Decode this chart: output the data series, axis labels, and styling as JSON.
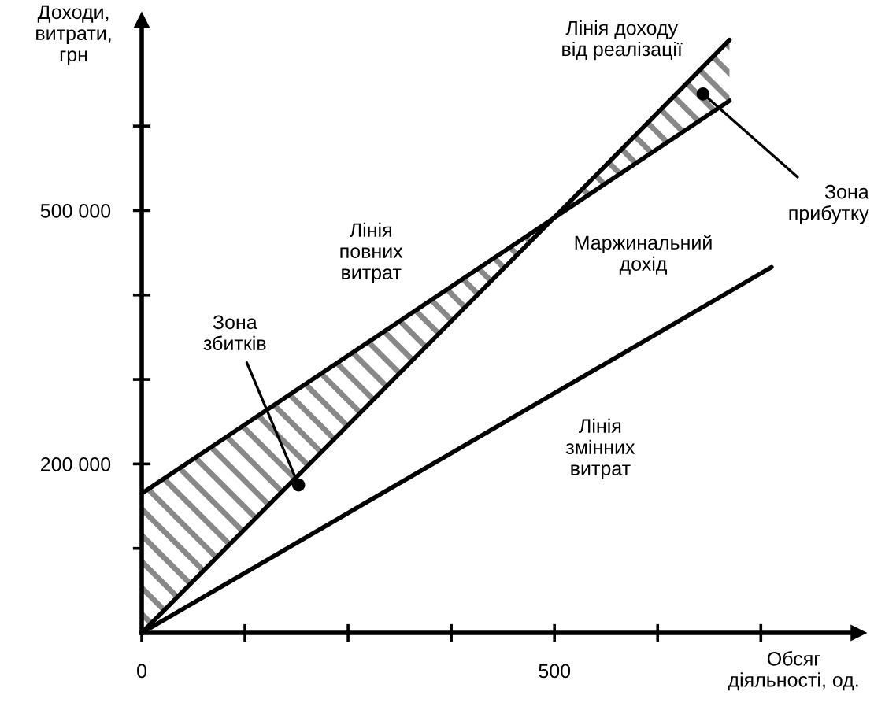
{
  "chart_data": {
    "type": "line",
    "xlabel": "Обсяг\nдіяльності, од.",
    "ylabel": "Доходи,\nвитрати,\nгрн",
    "series": [
      {
        "name": "Лінія доходу\nвід реалізації",
        "color": "#000000",
        "x": [
          0,
          500,
          712
        ],
        "values": [
          0,
          492000,
          702000
        ],
        "lower": [
          0,
          492000,
          630000
        ],
        "upper": [
          165000,
          492000,
          702000
        ]
      },
      {
        "name": "Лінія\nповних\nвитрат",
        "color": "#000000",
        "x": [
          0,
          712
        ],
        "values": [
          165000,
          630000
        ]
      },
      {
        "name": "Лінія\nзмінних\nвитрат",
        "color": "#000000",
        "x": [
          0,
          763
        ],
        "values": [
          0,
          433000
        ]
      }
    ],
    "annotations": [
      {
        "text": "Зона\nзбитків",
        "x": 190,
        "y": 175000
      },
      {
        "text": "Зона\nприбутку",
        "x": 680,
        "y": 638000
      },
      "Маржинальний\nдохід"
    ],
    "xlim": [
      0,
      868
    ],
    "ylim": [
      0,
      725000
    ],
    "xticks": [
      {
        "value": 0,
        "label": "0"
      },
      {
        "value": 125,
        "label": null
      },
      {
        "value": 250,
        "label": null
      },
      {
        "value": 375,
        "label": null
      },
      500,
      {
        "value": 625,
        "label": null
      },
      {
        "value": 750,
        "label": null
      }
    ],
    "yticks": [
      {
        "value": 100000,
        "label": null
      },
      {
        "value": 200000,
        "label": "200 000"
      },
      {
        "value": 300000,
        "label": null
      },
      {
        "value": 400000,
        "label": null
      },
      {
        "value": 500000,
        "label": "500 000"
      },
      {
        "value": 600000,
        "label": null
      }
    ],
    "grid": false,
    "legend": false,
    "marker": "none",
    "line_style": "solid"
  }
}
